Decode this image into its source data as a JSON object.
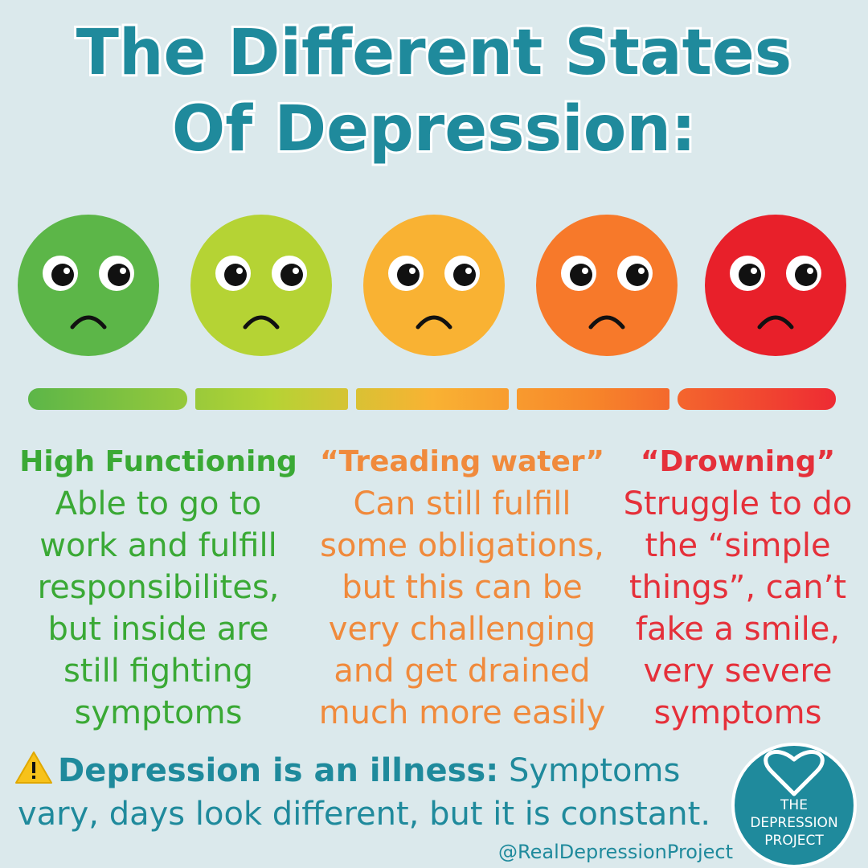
{
  "title": {
    "lines": [
      "The Different States",
      "Of Depression:"
    ]
  },
  "columns": [
    {
      "heading": "High Functioning",
      "lines": [
        "Able to go to",
        "work and fulfill",
        "responsibilites,",
        "but inside are",
        "still fighting",
        "symptoms"
      ]
    },
    {
      "heading": "“Treading water”",
      "lines": [
        "Can still fulfill",
        "some obligations,",
        "but this can be",
        "very challenging",
        "and get drained",
        "much more easily"
      ]
    },
    {
      "heading": "“Drowning”",
      "lines": [
        "Struggle to do",
        "the “simple",
        "things”, can’t",
        "fake a smile,",
        "very severe",
        "symptoms"
      ]
    }
  ],
  "footer": {
    "label": "Depression is an illness:",
    "lines": [
      "Symptoms",
      "vary, days look different, but it is constant."
    ]
  },
  "handle": "@RealDepressionProject",
  "logo": {
    "lines": [
      "THE",
      "DEPRESSION",
      "PROJECT"
    ]
  }
}
